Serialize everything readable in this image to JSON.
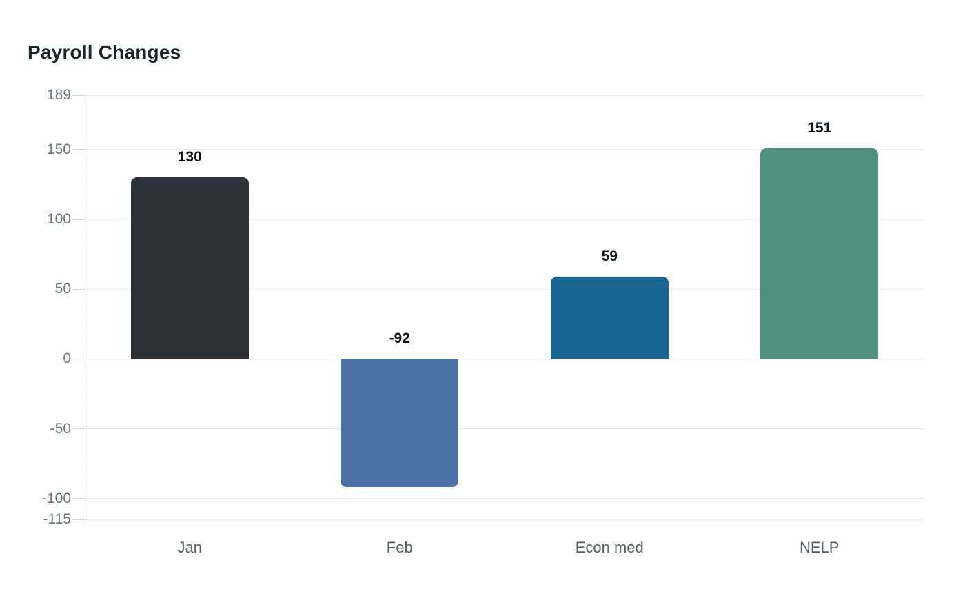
{
  "chart_data": {
    "type": "bar",
    "title": "Payroll Changes",
    "categories": [
      "Jan",
      "Feb",
      "Econ med",
      "NELP"
    ],
    "values": [
      130,
      -92,
      59,
      151
    ],
    "value_labels": [
      "130",
      "-92",
      "59",
      "151"
    ],
    "bar_colors": [
      "#2c3338",
      "#4a70a6",
      "#176590",
      "#4f907f"
    ],
    "yticks": [
      189,
      150,
      100,
      50,
      0,
      -50,
      -100,
      -115
    ],
    "ylim": [
      -115,
      189
    ],
    "xlabel": "",
    "ylabel": "",
    "grid": true,
    "legend": false,
    "background": "#ffffff",
    "colors": {
      "title": "#1e2328",
      "value_label": "#0f1113",
      "ytick_label": "#6f7479",
      "xtick_label": "#565b5f",
      "gridline": "#ececec",
      "tick": "#d5d5d5",
      "axis_line": "#d8d8d8"
    }
  }
}
